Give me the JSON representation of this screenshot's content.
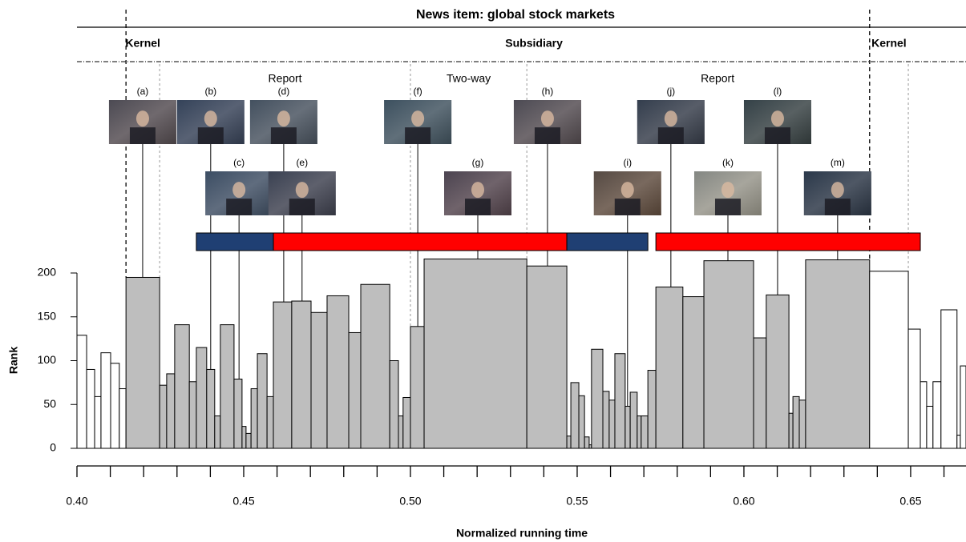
{
  "chart_data": {
    "type": "histogram",
    "title": "News item: global stock markets",
    "x_label": "Normalized running time",
    "y_label": "Rank",
    "xlim": [
      0.4,
      0.6666
    ],
    "ylim": [
      0,
      200
    ],
    "xticks": [
      {
        "value": 0.4,
        "label": "0.40"
      },
      0.45,
      {
        "value": 0.5,
        "label": "0.50"
      },
      0.55,
      {
        "value": 0.6,
        "label": "0.60"
      },
      0.65
    ],
    "xminorticks": [
      0.41,
      0.42,
      0.43,
      0.44,
      0.46,
      0.47,
      0.48,
      0.49,
      0.51,
      0.52,
      0.53,
      0.54,
      0.56,
      0.57,
      0.58,
      0.59,
      0.61,
      0.62,
      0.63,
      0.64,
      0.66
    ],
    "yticks": [
      0,
      50,
      100,
      150,
      200
    ],
    "color": "#bebebe",
    "outside_color": "#ffffff",
    "bins": [
      0.4,
      0.4029,
      0.4053,
      0.4072,
      0.4101,
      0.4127,
      0.4147,
      0.4248,
      0.4269,
      0.4293,
      0.4337,
      0.4358,
      0.4389,
      0.4413,
      0.443,
      0.4471,
      0.4495,
      0.4507,
      0.4522,
      0.4541,
      0.457,
      0.4589,
      0.4644,
      0.4702,
      0.475,
      0.4815,
      0.4851,
      0.4938,
      0.4964,
      0.4978,
      0.5,
      0.5041,
      0.5349,
      0.5469,
      0.5481,
      0.5505,
      0.5522,
      0.5536,
      0.5543,
      0.5577,
      0.5596,
      0.5613,
      0.5644,
      0.5659,
      0.568,
      0.5692,
      0.5712,
      0.5736,
      0.5817,
      0.588,
      0.6029,
      0.6067,
      0.6135,
      0.6147,
      0.6166,
      0.6185,
      0.6377,
      0.6493,
      0.6529,
      0.6548,
      0.6567,
      0.6591,
      0.6639,
      0.6649,
      0.6666
    ],
    "values": [
      129,
      90,
      59,
      109,
      97,
      68,
      195,
      72,
      85,
      141,
      76,
      115,
      90,
      37,
      141,
      79,
      25,
      17,
      68,
      108,
      59,
      167,
      168,
      155,
      174,
      132,
      187,
      100,
      37,
      58,
      139,
      216,
      208,
      14,
      75,
      60,
      13,
      4,
      113,
      65,
      55,
      108,
      48,
      64,
      37,
      37,
      89,
      184,
      173,
      214,
      126,
      175,
      40,
      59,
      55,
      215,
      202,
      136,
      76,
      48,
      76,
      158,
      15,
      94
    ],
    "item_bounds": [
      0.4147,
      0.6377
    ],
    "segment_bounds": [
      0.4248,
      0.5,
      0.5349,
      0.6493
    ],
    "regions": [
      {
        "label": "Kernel",
        "x0": 0.4147,
        "x1": 0.4248
      },
      {
        "label": "Subsidiary",
        "x0": 0.4248,
        "x1": 0.6493
      },
      {
        "label": "Kernel",
        "x0": 0.6377,
        "x1": 0.6493
      }
    ],
    "segment_types": [
      {
        "label": "Report",
        "x0": 0.4248,
        "x1": 0.5
      },
      {
        "label": "Two-way",
        "x0": 0.5,
        "x1": 0.5349
      },
      {
        "label": "Report",
        "x0": 0.5349,
        "x1": 0.6493
      }
    ],
    "frames": [
      {
        "label": "(a)",
        "x": 0.4197
      },
      {
        "label": "(b)",
        "x": 0.4401
      },
      {
        "label": "(c)",
        "x": 0.4486
      },
      {
        "label": "(d)",
        "x": 0.462
      },
      {
        "label": "(e)",
        "x": 0.4675
      },
      {
        "label": "(f)",
        "x": 0.5022
      },
      {
        "label": "(g)",
        "x": 0.5202
      },
      {
        "label": "(h)",
        "x": 0.5411
      },
      {
        "label": "(i)",
        "x": 0.5651
      },
      {
        "label": "(j)",
        "x": 0.5781
      },
      {
        "label": "(k)",
        "x": 0.5952
      },
      {
        "label": "(l)",
        "x": 0.6101
      },
      {
        "label": "(m)",
        "x": 0.6281
      }
    ],
    "segments": [
      {
        "x0": 0.4358,
        "x1": 0.4589,
        "color": "#1f3f73"
      },
      {
        "x0": 0.4589,
        "x1": 0.5469,
        "color": "#ff0000"
      },
      {
        "x0": 0.5469,
        "x1": 0.5712,
        "color": "#1f3f73"
      },
      {
        "x0": 0.5736,
        "x1": 0.6529,
        "color": "#ff0000"
      }
    ]
  }
}
